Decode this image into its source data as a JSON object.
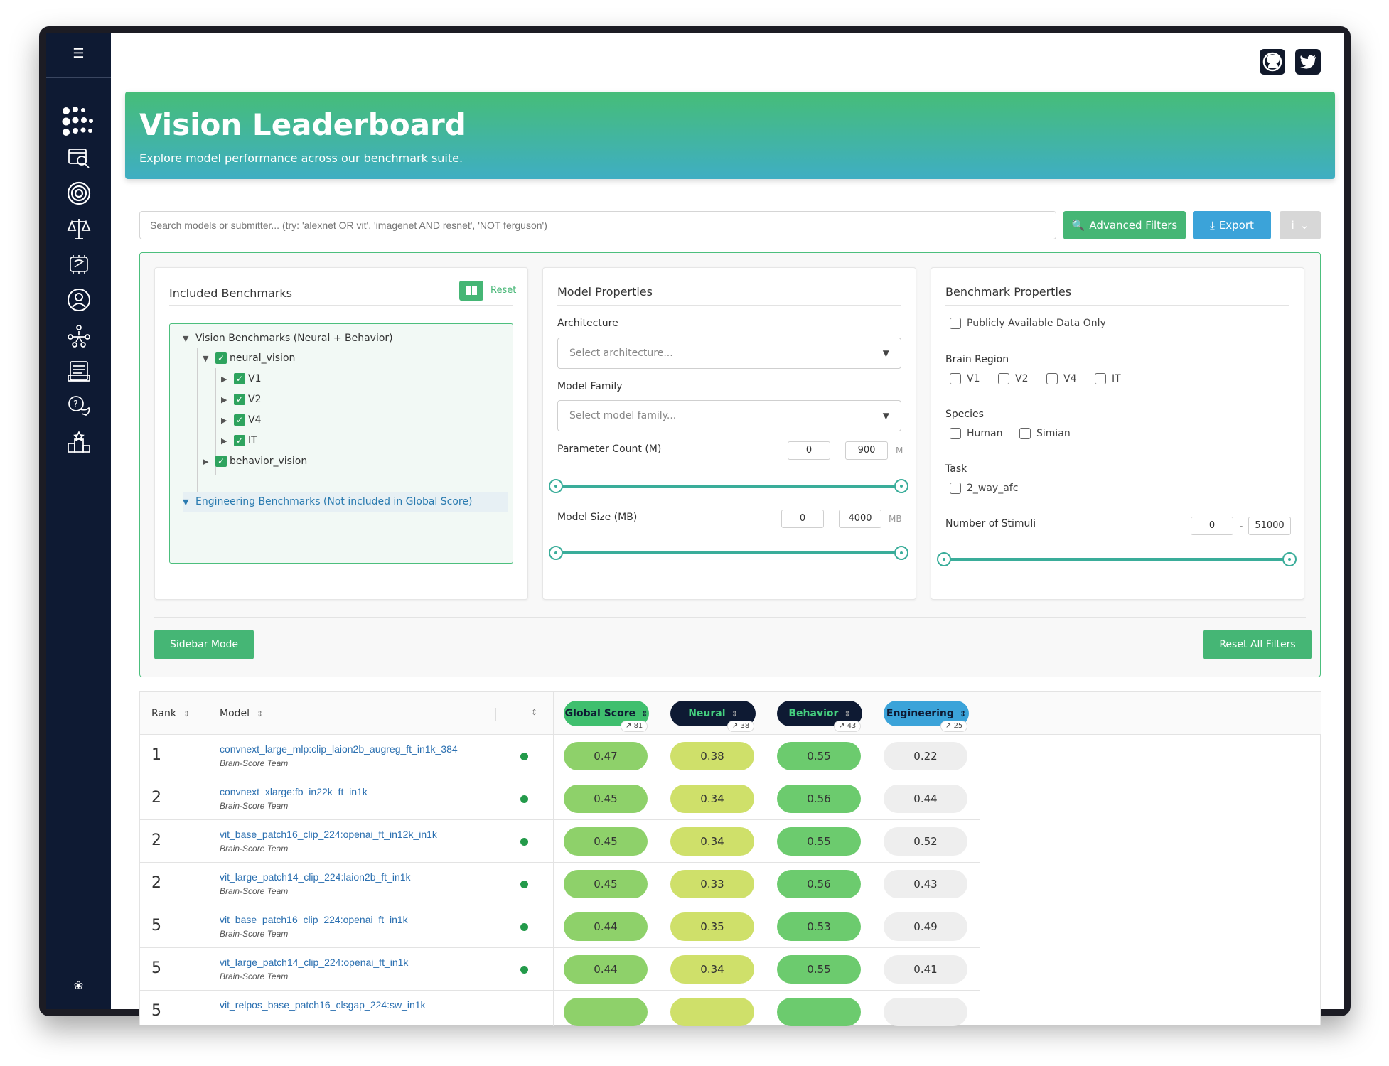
{
  "sidebar": {
    "menu_icon": "menu-icon",
    "icons": [
      "logo-dots-icon",
      "compare-models-icon",
      "target-icon",
      "scales-icon",
      "brain-icon",
      "profile-icon",
      "community-icon",
      "news-icon",
      "help-icon",
      "leaderboard-icon"
    ],
    "bug_icon": "bug-icon"
  },
  "hero": {
    "title": "Vision Leaderboard",
    "subtitle": "Explore model performance across our benchmark suite."
  },
  "search": {
    "placeholder": "Search models or submitter... (try: 'alexnet OR vit', 'imagenet AND resnet', 'NOT ferguson')"
  },
  "toolbar": {
    "advanced_filters": "Advanced Filters",
    "export": "Export",
    "info": "i"
  },
  "benchmarks": {
    "title": "Included Benchmarks",
    "reset": "Reset",
    "vision_root": "Vision Benchmarks (Neural + Behavior)",
    "neural": "neural_vision",
    "regions": [
      "V1",
      "V2",
      "V4",
      "IT"
    ],
    "behavior": "behavior_vision",
    "engineering_root": "Engineering Benchmarks (Not included in Global Score)"
  },
  "model_props": {
    "title": "Model Properties",
    "architecture_label": "Architecture",
    "architecture_placeholder": "Select architecture...",
    "family_label": "Model Family",
    "family_placeholder": "Select model family...",
    "param_label": "Parameter Count (M)",
    "param_min": "0",
    "param_max": "900",
    "param_unit": "M",
    "size_label": "Model Size (MB)",
    "size_min": "0",
    "size_max": "4000",
    "size_unit": "MB",
    "dash": "-"
  },
  "bench_props": {
    "title": "Benchmark Properties",
    "public_only": "Publicly Available Data Only",
    "brain_region_label": "Brain Region",
    "brain_regions": [
      "V1",
      "V2",
      "V4",
      "IT"
    ],
    "species_label": "Species",
    "species": [
      "Human",
      "Simian"
    ],
    "task_label": "Task",
    "task": "2_way_afc",
    "stimuli_label": "Number of Stimuli",
    "stimuli_min": "0",
    "stimuli_max": "51000",
    "dash": "-"
  },
  "filter_actions": {
    "sidebar_mode": "Sidebar Mode",
    "reset_all": "Reset All Filters"
  },
  "table": {
    "headers": {
      "rank": "Rank",
      "model": "Model",
      "global": "Global Score",
      "neural": "Neural",
      "behavior": "Behavior",
      "engineering": "Engineering"
    },
    "counts": {
      "global": "81",
      "neural": "38",
      "behavior": "43",
      "engineering": "25"
    },
    "rows": [
      {
        "rank": "1",
        "model": "convnext_large_mlp:clip_laion2b_augreg_ft_in1k_384",
        "team": "Brain-Score Team",
        "global": "0.47",
        "neural": "0.38",
        "behavior": "0.55",
        "engineering": "0.22"
      },
      {
        "rank": "2",
        "model": "convnext_xlarge:fb_in22k_ft_in1k",
        "team": "Brain-Score Team",
        "global": "0.45",
        "neural": "0.34",
        "behavior": "0.56",
        "engineering": "0.44"
      },
      {
        "rank": "2",
        "model": "vit_base_patch16_clip_224:openai_ft_in12k_in1k",
        "team": "Brain-Score Team",
        "global": "0.45",
        "neural": "0.34",
        "behavior": "0.55",
        "engineering": "0.52"
      },
      {
        "rank": "2",
        "model": "vit_large_patch14_clip_224:laion2b_ft_in1k",
        "team": "Brain-Score Team",
        "global": "0.45",
        "neural": "0.33",
        "behavior": "0.56",
        "engineering": "0.43"
      },
      {
        "rank": "5",
        "model": "vit_base_patch16_clip_224:openai_ft_in1k",
        "team": "Brain-Score Team",
        "global": "0.44",
        "neural": "0.35",
        "behavior": "0.53",
        "engineering": "0.49"
      },
      {
        "rank": "5",
        "model": "vit_large_patch14_clip_224:openai_ft_in1k",
        "team": "Brain-Score Team",
        "global": "0.44",
        "neural": "0.34",
        "behavior": "0.55",
        "engineering": "0.41"
      },
      {
        "rank": "5",
        "model": "vit_relpos_base_patch16_clsgap_224:sw_in1k",
        "team": "",
        "global": "",
        "neural": "",
        "behavior": "",
        "engineering": ""
      }
    ]
  },
  "colors": {
    "sidebar_bg": "#0e1a33",
    "accent_green": "#45b675",
    "accent_blue": "#3ba3d9",
    "global_pill": "#3fbf6e",
    "neural_pill": "#0e1a33",
    "behavior_pill": "#0e1a33",
    "engineering_pill": "#3ba3d9",
    "score_global": "#8ed16a",
    "score_neural": "#cfe06a",
    "score_behavior": "#6ccb6e",
    "score_engineering": "#eeeeee"
  }
}
